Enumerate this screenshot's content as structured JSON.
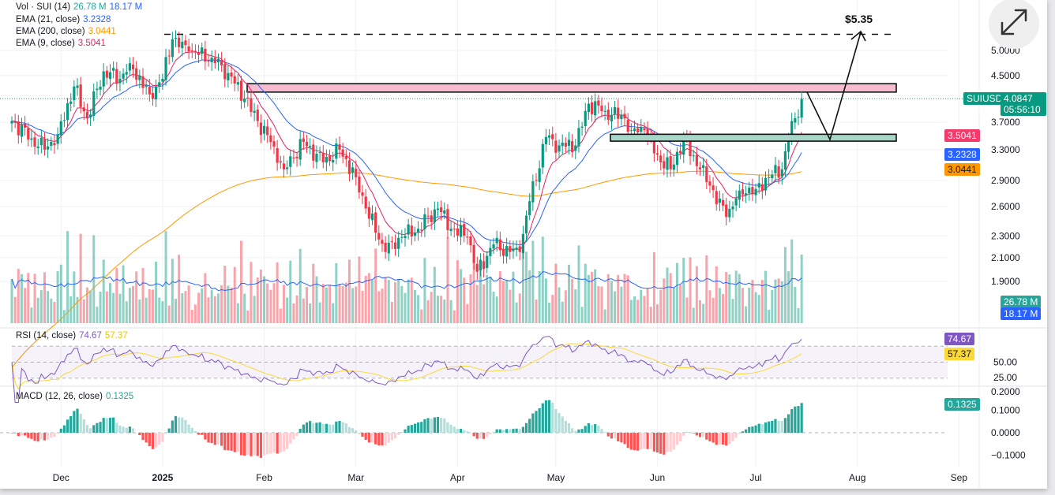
{
  "legend": {
    "vol": {
      "label": "Vol · SUI (14)",
      "v1": "26.78 M",
      "v2": "18.17 M"
    },
    "ema21": {
      "label": "EMA (21, close)",
      "value": "3.2328"
    },
    "ema200": {
      "label": "EMA (200, close)",
      "value": "3.0441"
    },
    "ema9": {
      "label": "EMA (9, close)",
      "value": "3.5041"
    },
    "rsi": {
      "label": "RSI (14, close)",
      "v1": "74.67",
      "v2": "57.37"
    },
    "macd": {
      "label": "MACD (12, 26, close)",
      "value": "0.1325"
    }
  },
  "badges": {
    "symbol": "SUIUSD",
    "price": "4.0847",
    "countdown": "05:56:10",
    "ema9": "3.5041",
    "ema21": "3.2328",
    "ema200": "3.0441",
    "vol": "26.78 M",
    "volma": "18.17 M",
    "rsi": "74.67",
    "rsima": "57.37",
    "macd": "0.1325"
  },
  "annotation": {
    "target_label": "$5.35",
    "target_price": 5.35,
    "resistance_zone": [
      4.2,
      4.35
    ],
    "support_zone": [
      3.42,
      3.52
    ]
  },
  "colors": {
    "up": "#089981",
    "down": "#f23645",
    "ema9": "#e91e63",
    "ema21": "#2962ff",
    "ema200": "#ff9800",
    "rsi": "#7e57c2",
    "rsima": "#fdd835",
    "zone_pink": "#f8bbd0",
    "zone_green": "#a5d6c8"
  },
  "chart_data": {
    "type": "candlestick",
    "title": "SUIUSD daily",
    "x_unit": "days since 2024-11-16",
    "price_scale": "log",
    "price_ticks": [
      5.0,
      4.5,
      3.7,
      3.3,
      2.9,
      2.6,
      2.3,
      2.1,
      1.9
    ],
    "price_tick_labels": [
      "5.0000",
      "4.5000",
      "3.7000",
      "3.3000",
      "2.9000",
      "2.6000",
      "2.3000",
      "2.1000",
      "1.9000"
    ],
    "rsi_ticks": [
      "25.00",
      "50.00",
      "75.00"
    ],
    "macd_ticks": [
      "0.2000",
      "0.1000",
      "0.0000",
      "−0.1000"
    ],
    "month_ticks": [
      {
        "label": "Dec",
        "day": 15
      },
      {
        "label": "2025",
        "day": 46,
        "bold": true
      },
      {
        "label": "Feb",
        "day": 77
      },
      {
        "label": "Mar",
        "day": 105
      },
      {
        "label": "Apr",
        "day": 136
      },
      {
        "label": "May",
        "day": 166
      },
      {
        "label": "Jun",
        "day": 197
      },
      {
        "label": "Jul",
        "day": 227
      },
      {
        "label": "Aug",
        "day": 258
      },
      {
        "label": "Sep",
        "day": 289
      }
    ],
    "close_keypoints": [
      [
        0,
        3.72
      ],
      [
        6,
        3.46
      ],
      [
        10,
        3.3
      ],
      [
        14,
        3.52
      ],
      [
        19,
        4.3
      ],
      [
        23,
        3.76
      ],
      [
        28,
        4.58
      ],
      [
        33,
        4.44
      ],
      [
        36,
        4.74
      ],
      [
        42,
        4.16
      ],
      [
        46,
        4.44
      ],
      [
        49,
        5.24
      ],
      [
        54,
        4.98
      ],
      [
        61,
        4.85
      ],
      [
        66,
        4.55
      ],
      [
        71,
        4.09
      ],
      [
        75,
        3.72
      ],
      [
        80,
        3.34
      ],
      [
        83,
        3.04
      ],
      [
        89,
        3.41
      ],
      [
        95,
        3.13
      ],
      [
        100,
        3.3
      ],
      [
        105,
        2.94
      ],
      [
        108,
        2.58
      ],
      [
        114,
        2.15
      ],
      [
        119,
        2.29
      ],
      [
        124,
        2.37
      ],
      [
        130,
        2.58
      ],
      [
        134,
        2.37
      ],
      [
        139,
        2.29
      ],
      [
        142,
        1.98
      ],
      [
        147,
        2.22
      ],
      [
        152,
        2.15
      ],
      [
        155,
        2.15
      ],
      [
        158,
        2.66
      ],
      [
        163,
        3.48
      ],
      [
        167,
        3.36
      ],
      [
        172,
        3.36
      ],
      [
        176,
        4.0
      ],
      [
        181,
        3.88
      ],
      [
        187,
        3.76
      ],
      [
        189,
        3.58
      ],
      [
        193,
        3.58
      ],
      [
        196,
        3.25
      ],
      [
        201,
        3.04
      ],
      [
        205,
        3.46
      ],
      [
        210,
        3.04
      ],
      [
        213,
        2.84
      ],
      [
        218,
        2.49
      ],
      [
        222,
        2.78
      ],
      [
        227,
        2.8
      ],
      [
        231,
        2.94
      ],
      [
        235,
        3.04
      ],
      [
        237,
        3.46
      ],
      [
        241,
        4.0847
      ]
    ],
    "last_close": 4.0847
  }
}
